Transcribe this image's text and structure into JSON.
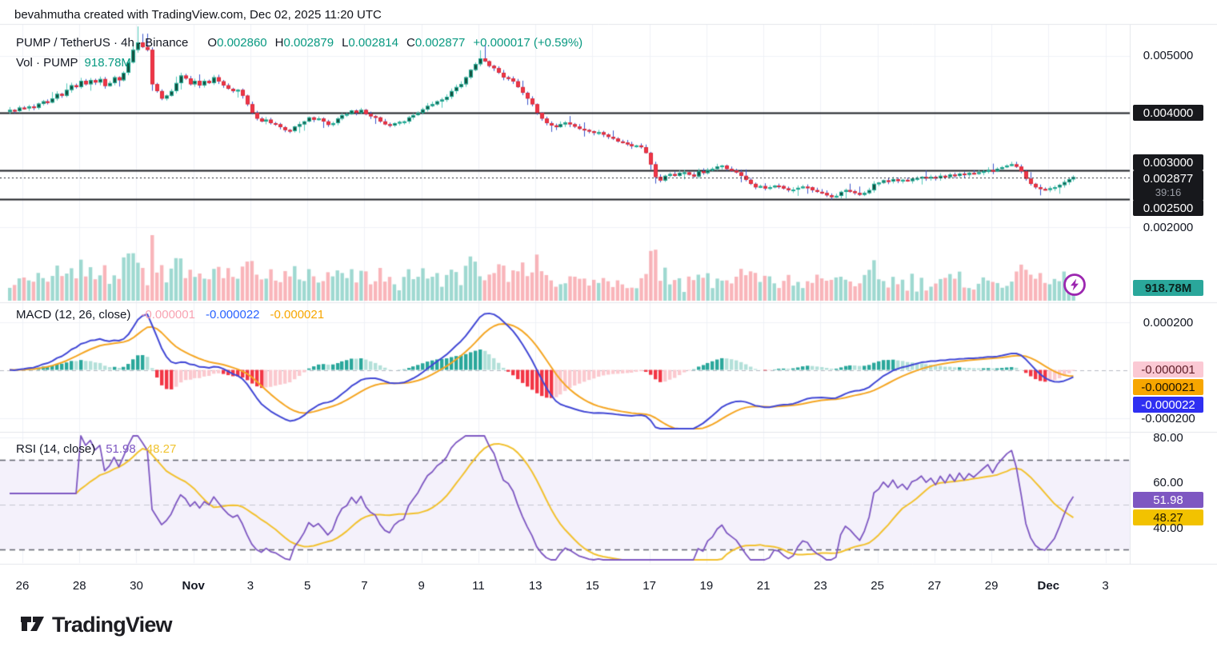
{
  "header": {
    "attribution": "bevahmutha created with TradingView.com, Dec 02, 2025 11:20 UTC"
  },
  "symbol_legend": {
    "title": "PUMP / TetherUS · 4h · Binance",
    "ohlc": [
      {
        "label": "O",
        "value": "0.002860"
      },
      {
        "label": "H",
        "value": "0.002879"
      },
      {
        "label": "L",
        "value": "0.002814"
      },
      {
        "label": "C",
        "value": "0.002877"
      }
    ],
    "change": "+0.000017 (+0.59%)",
    "volume_label": "Vol · PUMP",
    "volume_value": "918.78M"
  },
  "macd_legend": {
    "title": "MACD (12, 26, close)",
    "hist_value": "-0.000001",
    "macd_value": "-0.000022",
    "signal_value": "-0.000021"
  },
  "rsi_legend": {
    "title": "RSI (14, close)",
    "rsi_value": "51.98",
    "ma_value": "48.27"
  },
  "price_axis": {
    "items": [
      {
        "text": "0.005000",
        "style": "plain"
      },
      {
        "text": "0.004000",
        "style": "black"
      },
      {
        "text": "0.003000",
        "style": "black"
      },
      {
        "text": "0.002877",
        "style": "last",
        "countdown": "39:16"
      },
      {
        "text": "0.002500",
        "style": "black"
      },
      {
        "text": "0.002000",
        "style": "plain"
      },
      {
        "text": "918.78M",
        "style": "volume"
      }
    ]
  },
  "macd_axis": {
    "items": [
      {
        "text": "0.000200",
        "style": "plain"
      },
      {
        "text": "-0.000001",
        "style": "pink"
      },
      {
        "text": "-0.000021",
        "style": "orange"
      },
      {
        "text": "-0.000022",
        "style": "blue"
      },
      {
        "text": "-0.000200",
        "style": "plain"
      }
    ]
  },
  "rsi_axis": {
    "items": [
      {
        "text": "80.00",
        "style": "plain"
      },
      {
        "text": "60.00",
        "style": "plain"
      },
      {
        "text": "51.98",
        "style": "purple"
      },
      {
        "text": "48.27",
        "style": "yellow"
      },
      {
        "text": "40.00",
        "style": "plain"
      }
    ]
  },
  "time_axis": {
    "ticks": [
      {
        "label": "26",
        "d": 0
      },
      {
        "label": "28",
        "d": 2
      },
      {
        "label": "30",
        "d": 4
      },
      {
        "label": "Nov",
        "d": 6,
        "bold": true
      },
      {
        "label": "3",
        "d": 8
      },
      {
        "label": "5",
        "d": 10
      },
      {
        "label": "7",
        "d": 12
      },
      {
        "label": "9",
        "d": 14
      },
      {
        "label": "11",
        "d": 16
      },
      {
        "label": "13",
        "d": 18
      },
      {
        "label": "15",
        "d": 20
      },
      {
        "label": "17",
        "d": 22
      },
      {
        "label": "19",
        "d": 24
      },
      {
        "label": "21",
        "d": 26
      },
      {
        "label": "23",
        "d": 28
      },
      {
        "label": "25",
        "d": 30
      },
      {
        "label": "27",
        "d": 32
      },
      {
        "label": "29",
        "d": 34
      },
      {
        "label": "Dec",
        "d": 36,
        "bold": true
      },
      {
        "label": "3",
        "d": 38
      }
    ]
  },
  "logo": {
    "text": "TradingView"
  },
  "colors": {
    "teal_value": "#089981",
    "up_body": "#14503f",
    "up_border": "#1fae98",
    "up_wick": "#52c9ba",
    "down_body": "#f03647",
    "down_border": "#d92c3c",
    "down_wick": "#3b55cc",
    "vol_up": "rgba(43,171,152,0.45)",
    "vol_down": "rgba(240,70,82,0.40)",
    "macd_line": "#4147d5",
    "signal_line": "#f5a623",
    "hist_pos": "#2aa79b",
    "hist_pos_weak": "#b3e0d9",
    "hist_neg": "#f23645",
    "hist_neg_weak": "#fbc9cf",
    "rsi_line": "#7e57c2",
    "rsi_ma": "#f2c12e",
    "rsi_band_fill": "#f4f1fb",
    "level_line": "#1c1e24",
    "badge_black": "#17181c",
    "badge_blue": "#2f2ff2",
    "badge_pink": "#fbc9d4",
    "badge_orange": "#f7a600",
    "badge_purple": "#7e57c2",
    "badge_yellow": "#f2c200",
    "badge_volume": "#2aa79b",
    "bolt_purple": "#9c27b0",
    "grid": "#f0f2f7",
    "separator": "#e3e6ec"
  },
  "chart_data": [
    {
      "type": "candlestick",
      "symbol": "PUMP/TetherUS",
      "interval": "4h",
      "exchange": "Binance",
      "title": "PUMP / TetherUS · 4h · Binance",
      "x_range_labels": [
        "Oct 26",
        "Dec 3"
      ],
      "price_unit": "price = value * 1e-6 USDT",
      "closes_e6": [
        4050,
        4030,
        4090,
        4080,
        4110,
        4090,
        4160,
        4200,
        4180,
        4250,
        4330,
        4300,
        4400,
        4480,
        4450,
        4560,
        4500,
        4570,
        4530,
        4590,
        4470,
        4520,
        4620,
        4570,
        4700,
        4880,
        5100,
        5230,
        5150,
        5100,
        4500,
        4380,
        4250,
        4300,
        4380,
        4520,
        4650,
        4600,
        4500,
        4560,
        4480,
        4560,
        4520,
        4620,
        4550,
        4480,
        4420,
        4380,
        4400,
        4300,
        4150,
        4000,
        3900,
        3850,
        3880,
        3820,
        3800,
        3750,
        3700,
        3680,
        3760,
        3800,
        3850,
        3920,
        3880,
        3900,
        3850,
        3790,
        3820,
        3900,
        3960,
        3980,
        4040,
        4000,
        4050,
        3980,
        3940,
        3920,
        3850,
        3800,
        3780,
        3820,
        3840,
        3850,
        3920,
        3960,
        4000,
        4060,
        4120,
        4150,
        4200,
        4230,
        4280,
        4380,
        4450,
        4500,
        4620,
        4750,
        4850,
        4950,
        4900,
        4820,
        4780,
        4700,
        4620,
        4600,
        4550,
        4450,
        4350,
        4250,
        4150,
        4000,
        3900,
        3820,
        3780,
        3750,
        3800,
        3830,
        3800,
        3760,
        3720,
        3700,
        3680,
        3650,
        3660,
        3620,
        3580,
        3550,
        3500,
        3480,
        3450,
        3420,
        3430,
        3400,
        3300,
        3100,
        2880,
        2820,
        2900,
        2930,
        2900,
        2950,
        2960,
        2920,
        2890,
        2980,
        2950,
        3000,
        3020,
        3060,
        3080,
        3020,
        2990,
        2960,
        2900,
        2830,
        2760,
        2700,
        2720,
        2680,
        2700,
        2730,
        2720,
        2680,
        2650,
        2660,
        2690,
        2710,
        2700,
        2650,
        2620,
        2600,
        2560,
        2530,
        2550,
        2620,
        2650,
        2630,
        2600,
        2570,
        2600,
        2650,
        2760,
        2780,
        2820,
        2800,
        2840,
        2810,
        2830,
        2810,
        2850,
        2860,
        2880,
        2860,
        2880,
        2860,
        2900,
        2880,
        2920,
        2900,
        2940,
        2920,
        2950,
        2940,
        2960,
        2980,
        3000,
        2980,
        3020,
        3050,
        3080,
        3100,
        3060,
        2980,
        2850,
        2760,
        2700,
        2670,
        2660,
        2680,
        2700,
        2740,
        2790,
        2840,
        2877
      ],
      "last_ohlc": {
        "o": 0.00286,
        "h": 0.002879,
        "l": 0.002814,
        "c": 0.002877
      },
      "change": {
        "abs": 1.7e-05,
        "pct": 0.59
      },
      "drawn_levels": [
        0.004,
        0.003,
        0.0025
      ],
      "last_price": 0.002877,
      "y_axis_ticks": [
        0.005,
        0.004,
        0.003,
        0.002
      ],
      "ylim": [
        0.00245,
        0.00555
      ],
      "grid": true,
      "volume_last": "918.78M"
    },
    {
      "type": "line",
      "title": "MACD (12, 26, close)",
      "series": [
        {
          "name": "MACD line",
          "last": -2.2e-05
        },
        {
          "name": "Signal line",
          "last": -2.1e-05
        },
        {
          "name": "Histogram",
          "last": -1e-06
        }
      ],
      "y_axis_ticks": [
        0.0002,
        -0.0002
      ],
      "ylim": [
        -0.00028,
        0.00028
      ],
      "derived_from": "closes_e6 with EMA 12/26, signal EMA 9"
    },
    {
      "type": "line",
      "title": "RSI (14, close)",
      "series": [
        {
          "name": "RSI",
          "last": 51.98
        },
        {
          "name": "RSI-based MA",
          "last": 48.27
        }
      ],
      "bands": [
        70,
        50,
        30
      ],
      "y_axis_ticks": [
        80,
        60,
        40
      ],
      "ylim": [
        20,
        90
      ],
      "derived_from": "closes_e6 with Wilder RSI 14, SMA 14"
    }
  ]
}
